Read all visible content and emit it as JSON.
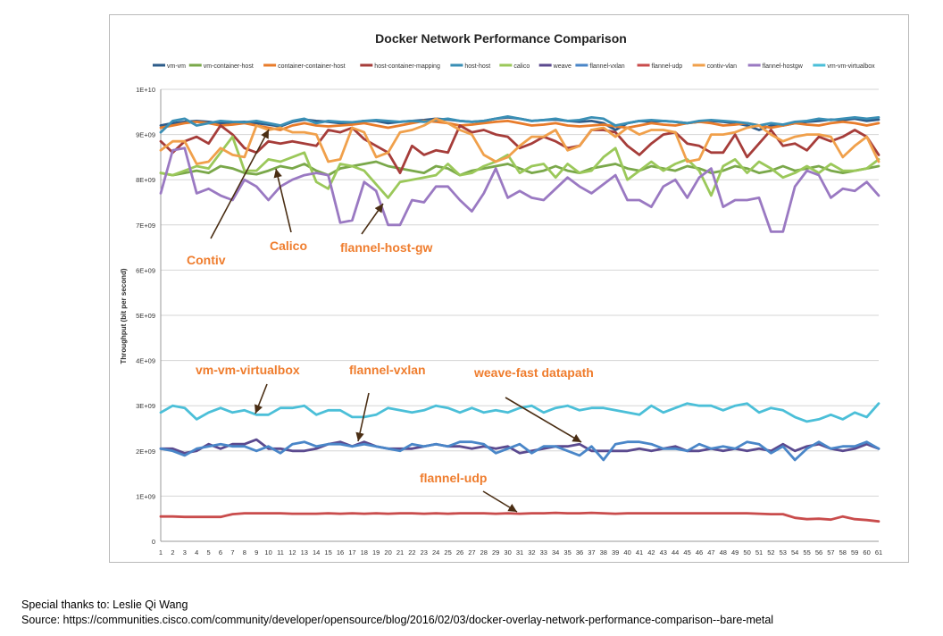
{
  "footer": {
    "thanks": "Special thanks to: Leslie Qi Wang",
    "source": "Source: https://communities.cisco.com/community/developer/opensource/blog/2016/02/03/docker-overlay-network-performance-comparison--bare-metal"
  },
  "chart_data": {
    "type": "line",
    "title": "Docker Network Performance Comparison",
    "ylabel": "Throughput (bit per second)",
    "xlabel": "",
    "ylim": [
      0,
      10000000000
    ],
    "grid": true,
    "legend_position": "top",
    "y_ticks": [
      {
        "value": 0,
        "label": "0"
      },
      {
        "value": 1000000000,
        "label": "1E+09"
      },
      {
        "value": 2000000000,
        "label": "2E+09"
      },
      {
        "value": 3000000000,
        "label": "3E+09"
      },
      {
        "value": 4000000000,
        "label": "4E+09"
      },
      {
        "value": 5000000000,
        "label": "5E+09"
      },
      {
        "value": 6000000000,
        "label": "6E+09"
      },
      {
        "value": 7000000000,
        "label": "7E+09"
      },
      {
        "value": 8000000000,
        "label": "8E+09"
      },
      {
        "value": 9000000000,
        "label": "9E+09"
      },
      {
        "value": 10000000000,
        "label": "1E+10"
      }
    ],
    "x": [
      1,
      2,
      3,
      4,
      5,
      6,
      7,
      8,
      9,
      10,
      11,
      12,
      13,
      14,
      15,
      16,
      17,
      18,
      19,
      20,
      21,
      22,
      23,
      24,
      25,
      26,
      27,
      28,
      29,
      30,
      31,
      32,
      33,
      34,
      35,
      36,
      37,
      38,
      39,
      40,
      41,
      42,
      43,
      44,
      45,
      46,
      47,
      48,
      49,
      50,
      51,
      52,
      53,
      54,
      55,
      56,
      57,
      58,
      59,
      60,
      61
    ],
    "series": [
      {
        "name": "vm-vm",
        "color": "#2e5c8a",
        "values": [
          9.2,
          9.25,
          9.28,
          9.3,
          9.28,
          9.25,
          9.27,
          9.28,
          9.25,
          9.22,
          9.18,
          9.28,
          9.33,
          9.3,
          9.28,
          9.25,
          9.26,
          9.3,
          9.3,
          9.25,
          9.28,
          9.3,
          9.32,
          9.35,
          9.33,
          9.3,
          9.28,
          9.3,
          9.35,
          9.38,
          9.35,
          9.3,
          9.32,
          9.33,
          9.3,
          9.28,
          9.3,
          9.25,
          9.1,
          9.25,
          9.3,
          9.28,
          9.3,
          9.28,
          9.25,
          9.28,
          9.3,
          9.28,
          9.25,
          9.2,
          9.1,
          9.2,
          9.2,
          9.25,
          9.28,
          9.3,
          9.33,
          9.32,
          9.35,
          9.3,
          9.33
        ]
      },
      {
        "name": "vm-container-host",
        "color": "#7aa84a",
        "values": [
          8.15,
          8.1,
          8.15,
          8.2,
          8.15,
          8.3,
          8.25,
          8.15,
          8.12,
          8.2,
          8.3,
          8.25,
          8.35,
          8.2,
          8.1,
          8.25,
          8.3,
          8.35,
          8.4,
          8.3,
          8.25,
          8.2,
          8.15,
          8.3,
          8.25,
          8.1,
          8.2,
          8.25,
          8.3,
          8.35,
          8.25,
          8.15,
          8.2,
          8.3,
          8.2,
          8.15,
          8.25,
          8.3,
          8.35,
          8.25,
          8.2,
          8.3,
          8.25,
          8.2,
          8.3,
          8.25,
          8.15,
          8.2,
          8.3,
          8.25,
          8.15,
          8.2,
          8.3,
          8.2,
          8.25,
          8.3,
          8.2,
          8.15,
          8.2,
          8.25,
          8.3
        ]
      },
      {
        "name": "container-container-host",
        "color": "#e87c2b",
        "values": [
          9.15,
          9.2,
          9.25,
          9.28,
          9.25,
          9.2,
          9.22,
          9.25,
          9.2,
          9.15,
          9.1,
          9.2,
          9.25,
          9.2,
          9.18,
          9.2,
          9.22,
          9.25,
          9.2,
          9.15,
          9.2,
          9.25,
          9.3,
          9.28,
          9.25,
          9.2,
          9.22,
          9.25,
          9.28,
          9.3,
          9.25,
          9.2,
          9.22,
          9.25,
          9.2,
          9.18,
          9.2,
          9.22,
          9.18,
          9.15,
          9.2,
          9.25,
          9.22,
          9.2,
          9.25,
          9.28,
          9.25,
          9.2,
          9.22,
          9.25,
          9.2,
          9.15,
          9.2,
          9.25,
          9.22,
          9.2,
          9.25,
          9.28,
          9.25,
          9.2,
          9.25
        ]
      },
      {
        "name": "host-container-mapping",
        "color": "#a63d3a",
        "values": [
          8.85,
          8.6,
          8.85,
          8.95,
          8.8,
          9.2,
          9.0,
          8.7,
          8.6,
          8.85,
          8.8,
          8.85,
          8.8,
          8.75,
          9.1,
          9.05,
          9.15,
          8.9,
          8.75,
          8.6,
          8.15,
          8.75,
          8.55,
          8.65,
          8.6,
          9.2,
          9.05,
          9.1,
          9.0,
          8.95,
          8.7,
          8.8,
          8.95,
          8.85,
          8.7,
          8.75,
          9.1,
          9.1,
          9.05,
          8.75,
          8.55,
          8.8,
          9.0,
          9.05,
          8.8,
          8.75,
          8.6,
          8.6,
          9.0,
          8.5,
          8.8,
          9.1,
          8.75,
          8.8,
          8.65,
          8.95,
          8.85,
          8.95,
          9.1,
          8.95,
          8.55
        ]
      },
      {
        "name": "host-host",
        "color": "#3a8fb5",
        "values": [
          9.05,
          9.3,
          9.35,
          9.2,
          9.25,
          9.3,
          9.28,
          9.27,
          9.3,
          9.25,
          9.2,
          9.3,
          9.35,
          9.25,
          9.3,
          9.28,
          9.27,
          9.3,
          9.32,
          9.3,
          9.28,
          9.3,
          9.28,
          9.32,
          9.35,
          9.3,
          9.28,
          9.3,
          9.35,
          9.4,
          9.35,
          9.3,
          9.32,
          9.35,
          9.3,
          9.32,
          9.38,
          9.35,
          9.2,
          9.25,
          9.3,
          9.32,
          9.3,
          9.28,
          9.25,
          9.3,
          9.32,
          9.3,
          9.28,
          9.25,
          9.2,
          9.25,
          9.22,
          9.28,
          9.3,
          9.35,
          9.32,
          9.35,
          9.38,
          9.35,
          9.38
        ]
      },
      {
        "name": "calico",
        "color": "#9bc85a",
        "values": [
          8.15,
          8.1,
          8.2,
          8.3,
          8.25,
          8.6,
          8.95,
          8.2,
          8.2,
          8.45,
          8.4,
          8.5,
          8.6,
          7.95,
          7.8,
          8.35,
          8.3,
          8.2,
          7.9,
          7.6,
          7.95,
          8.0,
          8.05,
          8.1,
          8.35,
          8.1,
          8.15,
          8.3,
          8.4,
          8.55,
          8.15,
          8.3,
          8.35,
          8.05,
          8.35,
          8.15,
          8.2,
          8.5,
          8.7,
          8.0,
          8.2,
          8.4,
          8.2,
          8.35,
          8.45,
          8.2,
          7.65,
          8.3,
          8.45,
          8.15,
          8.4,
          8.25,
          8.05,
          8.15,
          8.3,
          8.15,
          8.35,
          8.2,
          8.2,
          8.25,
          8.45
        ]
      },
      {
        "name": "weave",
        "color": "#5b4a8f",
        "values": [
          2.05,
          2.05,
          1.95,
          2.0,
          2.15,
          2.05,
          2.15,
          2.15,
          2.25,
          2.05,
          2.05,
          2.0,
          2.0,
          2.05,
          2.15,
          2.2,
          2.1,
          2.2,
          2.1,
          2.05,
          2.05,
          2.05,
          2.1,
          2.15,
          2.1,
          2.1,
          2.05,
          2.1,
          2.05,
          2.1,
          1.95,
          2.0,
          2.05,
          2.1,
          2.1,
          2.15,
          2.0,
          2.0,
          2.0,
          2.0,
          2.05,
          2.0,
          2.05,
          2.1,
          2.0,
          2.0,
          2.05,
          2.0,
          2.05,
          2.0,
          2.05,
          2.0,
          2.15,
          2.0,
          2.1,
          2.15,
          2.05,
          2.0,
          2.05,
          2.15,
          2.05
        ]
      },
      {
        "name": "flannel-vxlan",
        "color": "#4a86c8",
        "values": [
          2.05,
          2.0,
          1.9,
          2.05,
          2.1,
          2.15,
          2.1,
          2.1,
          2.0,
          2.1,
          1.95,
          2.15,
          2.2,
          2.1,
          2.15,
          2.15,
          2.1,
          2.15,
          2.1,
          2.05,
          2.0,
          2.15,
          2.1,
          2.15,
          2.1,
          2.2,
          2.2,
          2.15,
          1.95,
          2.05,
          2.15,
          1.95,
          2.1,
          2.1,
          2.0,
          1.9,
          2.1,
          1.8,
          2.15,
          2.2,
          2.2,
          2.15,
          2.05,
          2.05,
          2.0,
          2.15,
          2.05,
          2.1,
          2.05,
          2.2,
          2.15,
          1.95,
          2.1,
          1.8,
          2.05,
          2.2,
          2.05,
          2.1,
          2.1,
          2.2,
          2.05
        ]
      },
      {
        "name": "flannel-udp",
        "color": "#c94c4c",
        "values": [
          0.55,
          0.55,
          0.54,
          0.54,
          0.54,
          0.54,
          0.6,
          0.62,
          0.62,
          0.62,
          0.62,
          0.61,
          0.61,
          0.61,
          0.62,
          0.61,
          0.62,
          0.61,
          0.62,
          0.61,
          0.62,
          0.62,
          0.61,
          0.62,
          0.61,
          0.62,
          0.62,
          0.62,
          0.61,
          0.62,
          0.61,
          0.62,
          0.62,
          0.63,
          0.62,
          0.62,
          0.63,
          0.62,
          0.61,
          0.62,
          0.62,
          0.62,
          0.62,
          0.62,
          0.62,
          0.62,
          0.62,
          0.62,
          0.62,
          0.62,
          0.61,
          0.6,
          0.6,
          0.52,
          0.49,
          0.5,
          0.48,
          0.55,
          0.49,
          0.47,
          0.44
        ]
      },
      {
        "name": "contiv-vlan",
        "color": "#f0a04b",
        "values": [
          8.65,
          8.85,
          8.85,
          8.35,
          8.4,
          8.7,
          8.55,
          8.5,
          9.2,
          9.1,
          9.15,
          9.05,
          9.05,
          9.0,
          8.4,
          8.45,
          9.15,
          9.05,
          8.5,
          8.6,
          9.05,
          9.1,
          9.2,
          9.35,
          9.25,
          9.1,
          9.0,
          8.55,
          8.4,
          8.5,
          8.75,
          8.95,
          8.95,
          9.1,
          8.65,
          8.75,
          9.1,
          9.15,
          8.95,
          9.15,
          9.0,
          9.1,
          9.1,
          9.05,
          8.4,
          8.45,
          9.0,
          9.0,
          9.05,
          9.15,
          9.2,
          9.0,
          8.85,
          8.95,
          9.0,
          9.0,
          8.95,
          8.5,
          8.75,
          8.95,
          8.4
        ]
      },
      {
        "name": "flannel-hostgw",
        "color": "#9a79c2",
        "values": [
          7.7,
          8.65,
          8.7,
          7.7,
          7.8,
          7.65,
          7.55,
          8.0,
          7.85,
          7.55,
          7.85,
          8.0,
          8.1,
          8.15,
          8.1,
          7.05,
          7.1,
          7.95,
          7.75,
          7.0,
          7.0,
          7.55,
          7.5,
          7.85,
          7.85,
          7.55,
          7.3,
          7.7,
          8.25,
          7.6,
          7.75,
          7.6,
          7.55,
          7.8,
          8.05,
          7.85,
          7.7,
          7.9,
          8.1,
          7.55,
          7.55,
          7.4,
          7.85,
          8.0,
          7.6,
          8.05,
          8.25,
          7.4,
          7.55,
          7.55,
          7.6,
          6.85,
          6.85,
          7.85,
          8.2,
          8.1,
          7.6,
          7.8,
          7.75,
          7.95,
          7.65
        ]
      },
      {
        "name": "vm-vm-virtualbox",
        "color": "#4bbfd8",
        "values": [
          2.85,
          3.0,
          2.95,
          2.7,
          2.85,
          2.95,
          2.85,
          2.9,
          2.8,
          2.8,
          2.95,
          2.95,
          3.0,
          2.8,
          2.9,
          2.9,
          2.75,
          2.75,
          2.8,
          2.95,
          2.9,
          2.85,
          2.9,
          3.0,
          2.95,
          2.85,
          2.95,
          2.85,
          2.9,
          2.85,
          2.95,
          3.0,
          2.85,
          2.95,
          3.0,
          2.9,
          2.95,
          2.95,
          2.9,
          2.85,
          2.8,
          3.0,
          2.85,
          2.95,
          3.05,
          3.0,
          3.0,
          2.9,
          3.0,
          3.05,
          2.85,
          2.95,
          2.9,
          2.75,
          2.65,
          2.7,
          2.8,
          2.7,
          2.85,
          2.75,
          3.05
        ]
      }
    ],
    "annotations": [
      {
        "id": "contiv",
        "text": "Contiv"
      },
      {
        "id": "calico",
        "text": "Calico"
      },
      {
        "id": "flannel-host-gw",
        "text": "flannel-host-gw"
      },
      {
        "id": "vm-vm-virtualbox",
        "text": "vm-vm-virtualbox"
      },
      {
        "id": "flannel-vxlan",
        "text": "flannel-vxlan"
      },
      {
        "id": "weave-fast",
        "text": "weave-fast datapath"
      },
      {
        "id": "flannel-udp",
        "text": "flannel-udp"
      }
    ]
  }
}
